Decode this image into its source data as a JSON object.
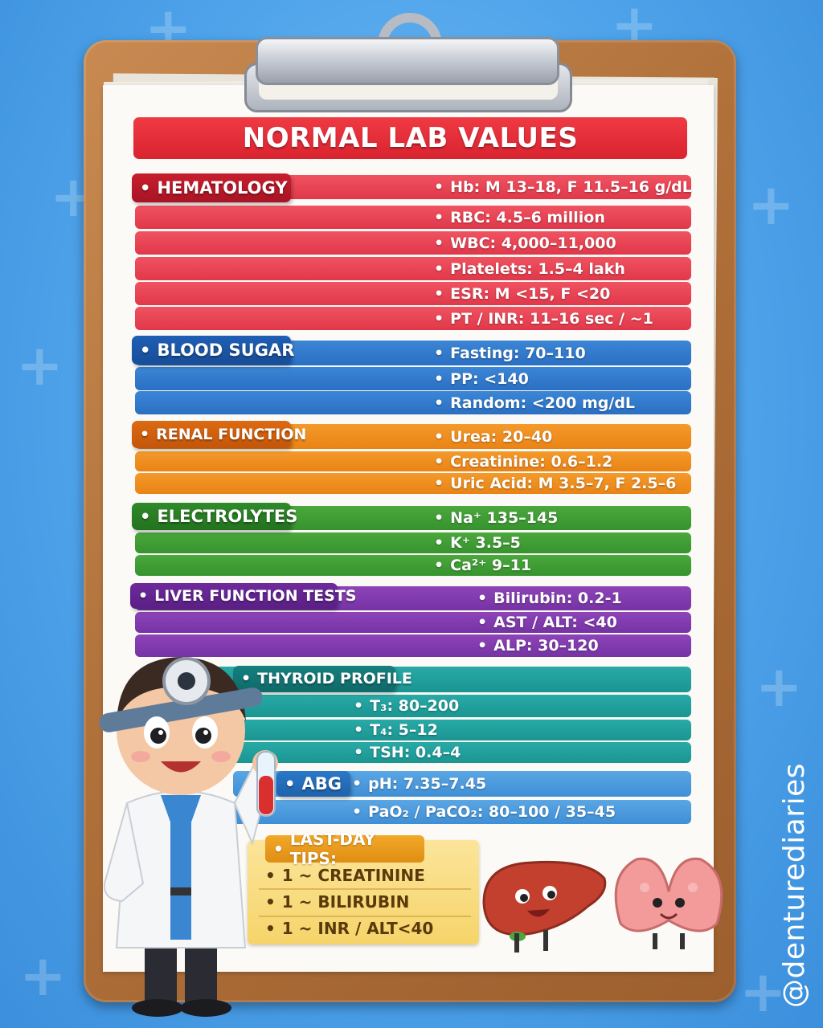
{
  "title": "NORMAL LAB VALUES",
  "sections": {
    "hematology": {
      "label": "HEMATOLOGY",
      "color": "#e0384a",
      "items": [
        "Hb: M 13–18, F 11.5–16 g/dL",
        "RBC: 4.5–6 million",
        "WBC: 4,000–11,000",
        "Platelets: 1.5–4 lakh",
        "ESR: M <15, F <20",
        "PT / INR: 11–16 sec / ~1"
      ]
    },
    "blood_sugar": {
      "label": "BLOOD SUGAR",
      "color": "#2a6fc3",
      "items": [
        "Fasting: 70–110",
        "PP: <140",
        "Random: <200 mg/dL"
      ]
    },
    "renal": {
      "label": "RENAL FUNCTION",
      "color": "#ea8316",
      "items": [
        "Urea: 20–40",
        "Creatinine: 0.6–1.2",
        "Uric Acid: M 3.5–7, F 2.5–6"
      ]
    },
    "electrolytes": {
      "label": "ELECTROLYTES",
      "color": "#37932e",
      "items": [
        "Na⁺ 135–145",
        "K⁺ 3.5–5",
        "Ca²⁺ 9–11"
      ]
    },
    "liver": {
      "label": "LIVER FUNCTION TESTS",
      "color": "#7633a4",
      "items": [
        "Bilirubin: 0.2-1",
        "AST / ALT: <40",
        "ALP: 30–120"
      ]
    },
    "thyroid": {
      "label": "THYROID PROFILE",
      "color": "#1a9592",
      "items": [
        "T₃: 80–200",
        "T₄: 5–12",
        "TSH: 0.4–4"
      ]
    },
    "abg": {
      "label": "ABG",
      "color": "#3f8fd6",
      "items": [
        "pH: 7.35–7.45",
        "PaO₂ / PaCO₂: 80–100 / 35–45"
      ]
    }
  },
  "tips": {
    "title": "LAST-DAY TIPS:",
    "items": [
      "1 ~ CREATININE",
      "1 ~ BILIRUBIN",
      "1 ~ INR / ALT<40"
    ]
  },
  "bullet": "•",
  "watermark": "@denturediaries",
  "illustrations": [
    "doctor-character",
    "liver-character",
    "thyroid-character",
    "test-tube-icon",
    "head-mirror-icon"
  ]
}
